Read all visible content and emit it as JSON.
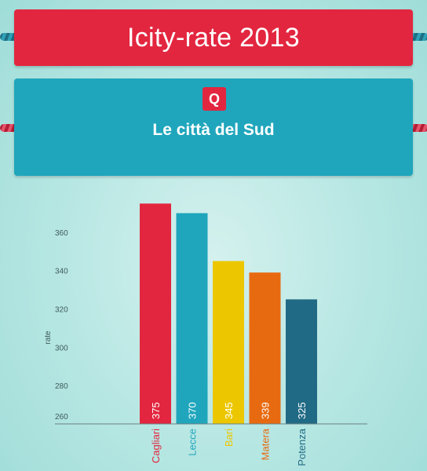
{
  "header": {
    "title": "Icity-rate 2013",
    "badge": "Q",
    "subtitle": "Le città del Sud"
  },
  "chart_data": {
    "type": "bar",
    "ylabel": "rate",
    "ylim": [
      260,
      378
    ],
    "y_ticks": [
      260,
      280,
      300,
      320,
      340,
      360
    ],
    "grid": false,
    "categories": [
      "Cagliari",
      "Lecce",
      "Bari",
      "Matera",
      "Potenza"
    ],
    "values": [
      375,
      370,
      345,
      339,
      325
    ],
    "colors": [
      "#e3263f",
      "#1fa6bc",
      "#ecc700",
      "#e86a10",
      "#216a85"
    ]
  }
}
